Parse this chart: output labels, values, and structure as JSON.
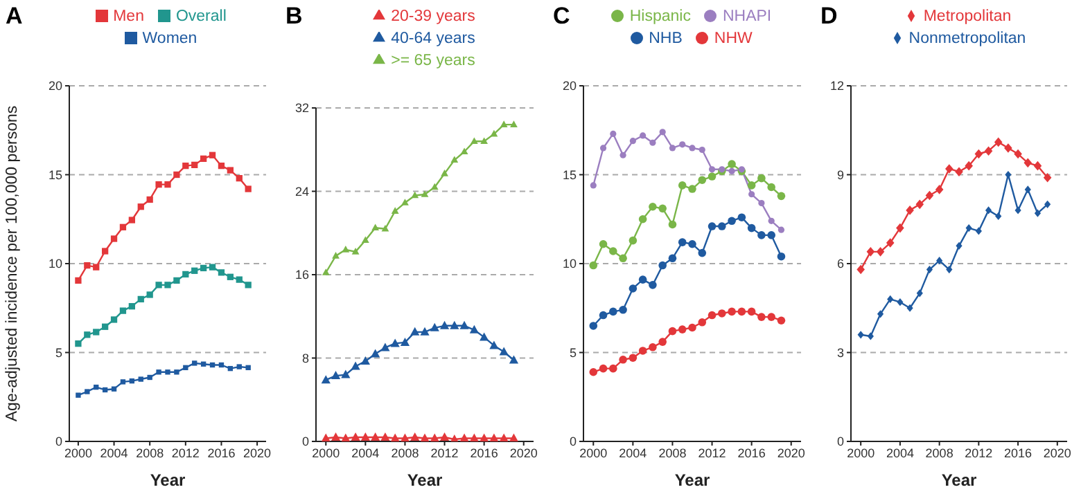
{
  "chart_data": [
    {
      "type": "line",
      "title": "A",
      "xlabel": "Year",
      "ylabel": "Age-adjusted incidence per 100,000 persons",
      "marker": "square",
      "grid": "y",
      "legend": "top",
      "xlim": [
        1999,
        2021
      ],
      "xticks": [
        2000,
        2004,
        2008,
        2012,
        2016,
        2020
      ],
      "ylim": [
        0,
        20
      ],
      "yticks": [
        0,
        5,
        10,
        15,
        20
      ],
      "x": [
        2000,
        2001,
        2002,
        2003,
        2004,
        2005,
        2006,
        2007,
        2008,
        2009,
        2010,
        2011,
        2012,
        2013,
        2014,
        2015,
        2016,
        2017,
        2018,
        2019
      ],
      "series": [
        {
          "name": "Overall",
          "color": "#21968e",
          "values": [
            5.5,
            6.0,
            6.15,
            6.45,
            6.85,
            7.35,
            7.6,
            8.0,
            8.25,
            8.8,
            8.8,
            9.05,
            9.4,
            9.6,
            9.75,
            9.8,
            9.5,
            9.25,
            9.1,
            8.8
          ]
        },
        {
          "name": "Men",
          "color": "#e3373a",
          "values": [
            9.05,
            9.9,
            9.8,
            10.7,
            11.4,
            12.05,
            12.45,
            13.2,
            13.6,
            14.45,
            14.45,
            15.0,
            15.5,
            15.55,
            15.9,
            16.1,
            15.5,
            15.25,
            14.8,
            14.2
          ]
        },
        {
          "name": "Women",
          "color": "#1f5aa0",
          "values": [
            2.6,
            2.8,
            3.05,
            2.9,
            2.95,
            3.35,
            3.4,
            3.5,
            3.6,
            3.9,
            3.9,
            3.9,
            4.15,
            4.4,
            4.35,
            4.3,
            4.3,
            4.1,
            4.2,
            4.15
          ]
        }
      ]
    },
    {
      "type": "line",
      "title": "B",
      "xlabel": "Year",
      "marker": "triangle",
      "grid": "y",
      "legend": "top",
      "xlim": [
        1999,
        2021
      ],
      "xticks": [
        2000,
        2004,
        2008,
        2012,
        2016,
        2020
      ],
      "ylim": [
        0,
        32
      ],
      "yticks": [
        0,
        8,
        16,
        24,
        32
      ],
      "x": [
        2000,
        2001,
        2002,
        2003,
        2004,
        2005,
        2006,
        2007,
        2008,
        2009,
        2010,
        2011,
        2012,
        2013,
        2014,
        2015,
        2016,
        2017,
        2018,
        2019
      ],
      "series": [
        {
          "name": "20-39 years",
          "color": "#e3373a",
          "values": [
            0.3,
            0.4,
            0.3,
            0.4,
            0.4,
            0.4,
            0.4,
            0.3,
            0.3,
            0.4,
            0.3,
            0.3,
            0.4,
            0.2,
            0.3,
            0.3,
            0.3,
            0.3,
            0.3,
            0.3
          ]
        },
        {
          "name": "40-64 years",
          "color": "#1f5aa0",
          "values": [
            5.9,
            6.3,
            6.4,
            7.2,
            7.7,
            8.4,
            9.0,
            9.4,
            9.5,
            10.5,
            10.5,
            10.9,
            11.1,
            11.1,
            11.1,
            10.7,
            10.0,
            9.2,
            8.6,
            7.8
          ]
        },
        {
          "name": ">= 65 years",
          "color": "#7ab648",
          "values": [
            16.2,
            17.8,
            18.4,
            18.2,
            19.3,
            20.5,
            20.4,
            22.1,
            22.9,
            23.6,
            23.7,
            24.4,
            25.7,
            27.0,
            27.8,
            28.8,
            28.8,
            29.5,
            30.4,
            30.4
          ]
        }
      ]
    },
    {
      "type": "line",
      "title": "C",
      "xlabel": "Year",
      "marker": "circle",
      "grid": "y",
      "legend": "top",
      "xlim": [
        1999,
        2021
      ],
      "xticks": [
        2000,
        2004,
        2008,
        2012,
        2016,
        2020
      ],
      "ylim": [
        0,
        20
      ],
      "yticks": [
        0,
        5,
        10,
        15,
        20
      ],
      "x": [
        2000,
        2001,
        2002,
        2003,
        2004,
        2005,
        2006,
        2007,
        2008,
        2009,
        2010,
        2011,
        2012,
        2013,
        2014,
        2015,
        2016,
        2017,
        2018,
        2019
      ],
      "series": [
        {
          "name": "NHW",
          "color": "#e3373a",
          "values": [
            3.9,
            4.1,
            4.1,
            4.6,
            4.7,
            5.1,
            5.3,
            5.6,
            6.2,
            6.3,
            6.4,
            6.7,
            7.1,
            7.2,
            7.3,
            7.3,
            7.3,
            7.0,
            7.0,
            6.8
          ]
        },
        {
          "name": "NHB",
          "color": "#1f5aa0",
          "values": [
            6.5,
            7.1,
            7.3,
            7.4,
            8.6,
            9.1,
            8.8,
            9.9,
            10.3,
            11.2,
            11.1,
            10.6,
            12.1,
            12.1,
            12.4,
            12.6,
            12.0,
            11.6,
            11.6,
            10.4
          ]
        },
        {
          "name": "Hispanic",
          "color": "#7ab648",
          "values": [
            9.9,
            11.1,
            10.7,
            10.3,
            11.3,
            12.5,
            13.2,
            13.1,
            12.2,
            14.4,
            14.2,
            14.7,
            14.9,
            15.2,
            15.6,
            15.2,
            14.4,
            14.8,
            14.3,
            13.8
          ]
        },
        {
          "name": "NHAPI",
          "color": "#9b7ec0",
          "values": [
            14.4,
            16.5,
            17.3,
            16.1,
            16.9,
            17.2,
            16.8,
            17.4,
            16.5,
            16.7,
            16.5,
            16.4,
            15.3,
            15.3,
            15.2,
            15.3,
            13.9,
            13.4,
            12.4,
            11.9
          ]
        }
      ]
    },
    {
      "type": "line",
      "title": "D",
      "xlabel": "Year",
      "marker": "diamond",
      "grid": "y",
      "legend": "top",
      "xlim": [
        1999,
        2021
      ],
      "xticks": [
        2000,
        2004,
        2008,
        2012,
        2016,
        2020
      ],
      "ylim": [
        0,
        12
      ],
      "yticks": [
        0,
        3,
        6,
        9,
        12
      ],
      "x": [
        2000,
        2001,
        2002,
        2003,
        2004,
        2005,
        2006,
        2007,
        2008,
        2009,
        2010,
        2011,
        2012,
        2013,
        2014,
        2015,
        2016,
        2017,
        2018,
        2019
      ],
      "series": [
        {
          "name": "Metropolitan",
          "color": "#e3373a",
          "values": [
            5.8,
            6.4,
            6.4,
            6.7,
            7.2,
            7.8,
            8.0,
            8.3,
            8.5,
            9.2,
            9.1,
            9.3,
            9.7,
            9.8,
            10.1,
            9.9,
            9.7,
            9.4,
            9.3,
            8.9
          ]
        },
        {
          "name": "Nonmetropolitan",
          "color": "#1f5aa0",
          "values": [
            3.6,
            3.55,
            4.3,
            4.8,
            4.7,
            4.5,
            5.0,
            5.8,
            6.1,
            5.8,
            6.6,
            7.2,
            7.1,
            7.8,
            7.6,
            9.0,
            7.8,
            8.5,
            7.7,
            8.0
          ]
        }
      ]
    }
  ]
}
